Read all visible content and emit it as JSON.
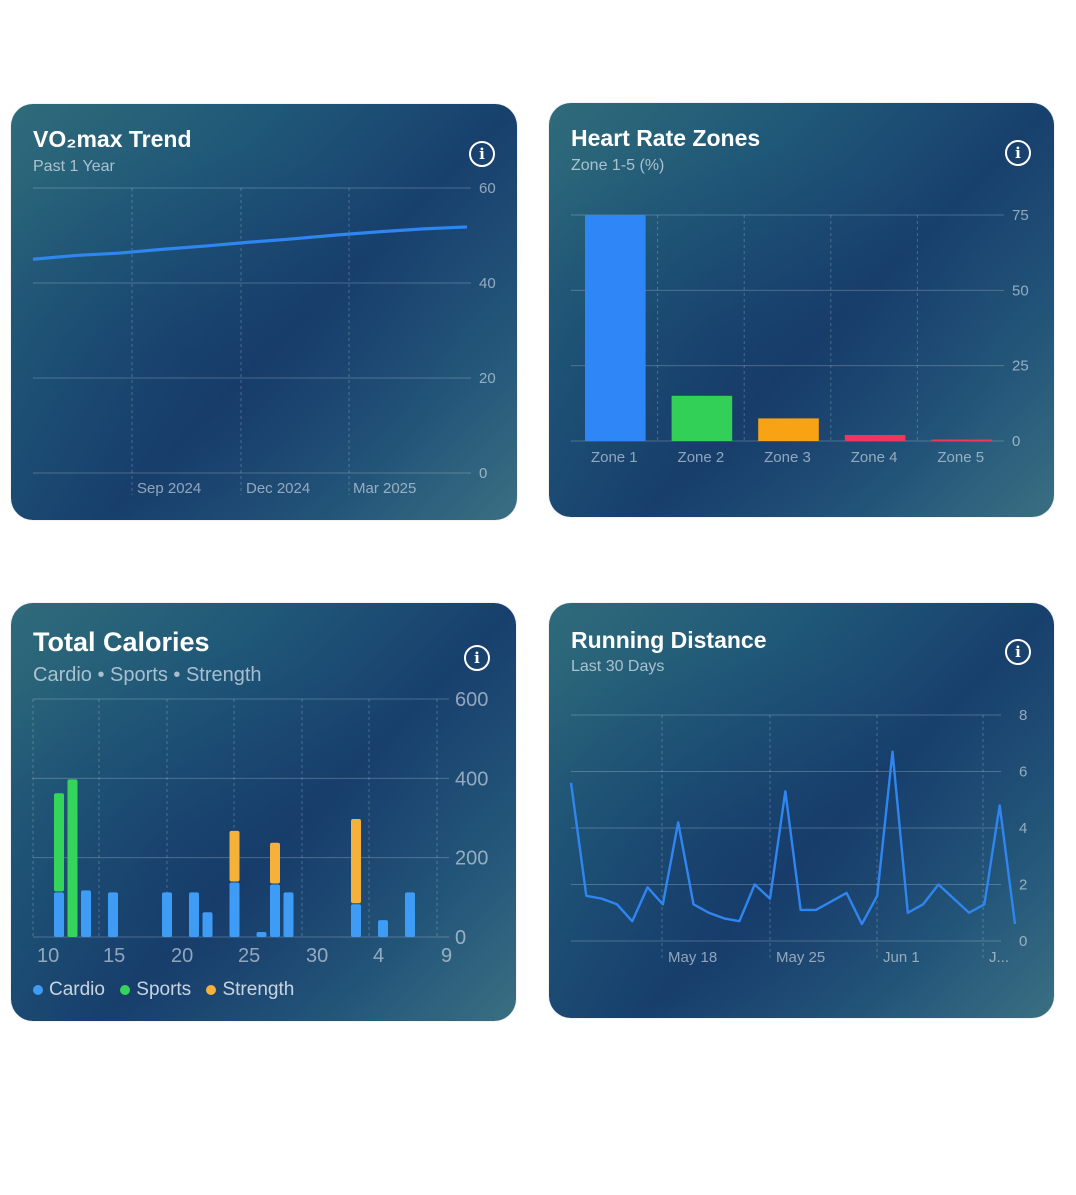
{
  "cards": {
    "vo2": {
      "title": "VO₂max Trend",
      "subtitle": "Past 1 Year",
      "info_icon": "info-icon"
    },
    "hr": {
      "title": "Heart Rate Zones",
      "subtitle": "Zone 1-5 (%)",
      "info_icon": "info-icon"
    },
    "cal": {
      "title": "Total Calories",
      "subtitle": "Cardio • Sports • Strength",
      "info_icon": "info-icon",
      "legend": [
        "Cardio",
        "Sports",
        "Strength"
      ]
    },
    "run": {
      "title": "Running Distance",
      "subtitle": "Last 30 Days",
      "info_icon": "info-icon"
    }
  },
  "colors": {
    "cardio": "#3f9cf5",
    "sports": "#35d45a",
    "strength": "#f5b13a",
    "line": "#2f86f0",
    "zone1": "#2f86f7",
    "zone2": "#33d058",
    "zone3": "#f8a313",
    "zone4": "#f0365c",
    "zone5": "#f0365c"
  },
  "chart_data": [
    {
      "id": "vo2",
      "type": "line",
      "title": "VO₂max Trend",
      "subtitle": "Past 1 Year",
      "x_tick_labels": [
        "Sep 2024",
        "Dec 2024",
        "Mar 2025"
      ],
      "ylim": [
        0,
        60
      ],
      "y_ticks": [
        0,
        20,
        40,
        60
      ],
      "series": [
        {
          "x": [
            0,
            0.1,
            0.2,
            0.3,
            0.4,
            0.5,
            0.6,
            0.7,
            0.8,
            0.9,
            1.0
          ],
          "values": [
            45,
            45.8,
            46.3,
            47.1,
            47.8,
            48.6,
            49.3,
            50.1,
            50.8,
            51.4,
            51.8
          ]
        }
      ],
      "grid": true
    },
    {
      "id": "hr",
      "type": "bar",
      "title": "Heart Rate Zones",
      "subtitle": "Zone 1-5 (%)",
      "categories": [
        "Zone 1",
        "Zone 2",
        "Zone 3",
        "Zone 4",
        "Zone 5"
      ],
      "values": [
        75,
        15,
        7.5,
        2,
        0.5
      ],
      "ylim": [
        0,
        75
      ],
      "y_ticks": [
        0,
        25,
        50,
        75
      ],
      "grid": true
    },
    {
      "id": "cal",
      "type": "bar",
      "title": "Total Calories",
      "subtitle": "Cardio • Sports • Strength",
      "x_tick_labels": [
        "10",
        "15",
        "20",
        "25",
        "30",
        "4",
        "9"
      ],
      "ylim": [
        0,
        600
      ],
      "y_ticks": [
        0,
        200,
        400,
        600
      ],
      "legend_position": "bottom-left",
      "stacked": true,
      "series": [
        {
          "name": "Cardio",
          "values": [
            115,
            0,
            120,
            0,
            115,
            0,
            0,
            0,
            115,
            0,
            115,
            65,
            0,
            140,
            0,
            15,
            135,
            115,
            0,
            0,
            0,
            0,
            85,
            0,
            45,
            0,
            115
          ]
        },
        {
          "name": "Sports",
          "values": [
            250,
            400,
            0,
            0,
            0,
            0,
            0,
            0,
            0,
            0,
            0,
            0,
            0,
            0,
            0,
            0,
            0,
            0,
            0,
            0,
            0,
            0,
            0,
            0,
            0,
            0,
            0
          ]
        },
        {
          "name": "Strength",
          "values": [
            0,
            0,
            0,
            0,
            0,
            0,
            0,
            0,
            0,
            0,
            0,
            0,
            0,
            130,
            0,
            0,
            105,
            0,
            0,
            0,
            0,
            0,
            215,
            0,
            0,
            0,
            0
          ]
        }
      ],
      "grid": true
    },
    {
      "id": "run",
      "type": "line",
      "title": "Running Distance",
      "subtitle": "Last 30 Days",
      "x_tick_labels": [
        "May 18",
        "May 25",
        "Jun 1",
        "J..."
      ],
      "ylim": [
        0,
        8
      ],
      "y_ticks": [
        0,
        2,
        4,
        6,
        8
      ],
      "series": [
        {
          "values": [
            5.6,
            1.6,
            1.5,
            1.3,
            0.7,
            1.9,
            1.3,
            4.2,
            1.3,
            1.0,
            0.8,
            0.7,
            2.0,
            1.5,
            5.3,
            1.1,
            1.1,
            1.4,
            1.7,
            0.6,
            1.6,
            6.7,
            1.0,
            1.3,
            2.0,
            1.5,
            1.0,
            1.3,
            4.8,
            0.6
          ]
        }
      ],
      "grid": true
    }
  ]
}
